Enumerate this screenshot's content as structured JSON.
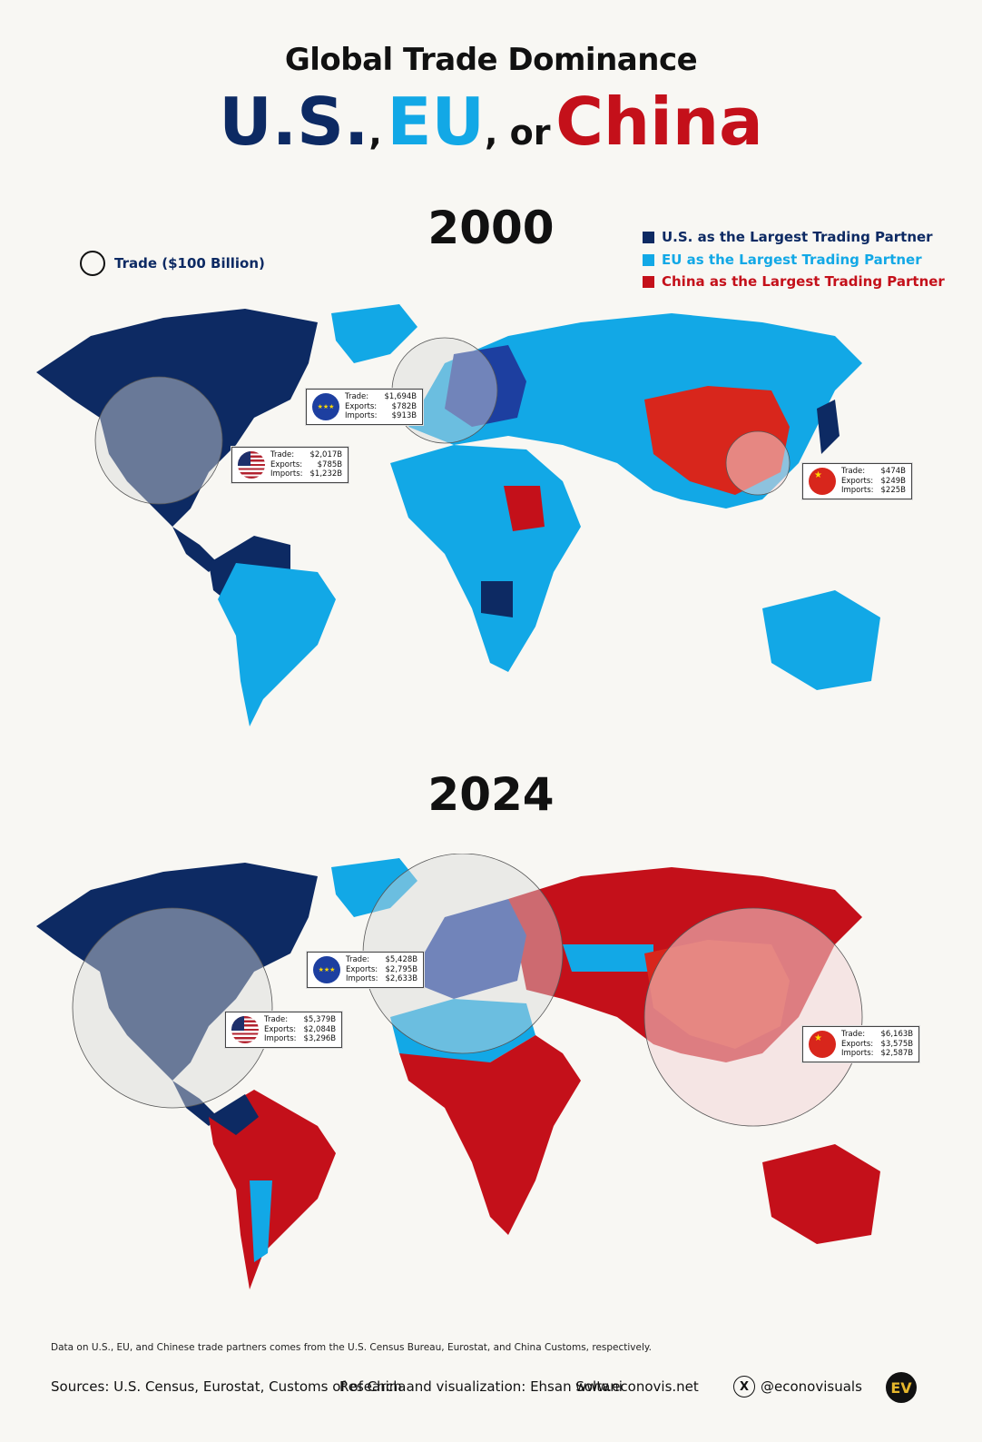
{
  "header": {
    "title_top": "Global Trade Dominance",
    "title_us": "U.S.",
    "title_sep1": ",",
    "title_eu": "EU",
    "title_sep2": ", or",
    "title_china": "China"
  },
  "legend": {
    "us": {
      "label": "U.S. as the Largest Trading Partner",
      "color": "#0d2a63"
    },
    "eu": {
      "label": "EU as the Largest Trading Partner",
      "color": "#12a8e6"
    },
    "china": {
      "label": "China as the Largest Trading Partner",
      "color": "#c4101a"
    },
    "size_label": "Trade ($100 Billion)"
  },
  "maps": [
    {
      "year": "2000",
      "eu_box": {
        "trade_label": "Trade:",
        "trade": "$1,694B",
        "exports_label": "Exports:",
        "exports": "$782B",
        "imports_label": "Imports:",
        "imports": "$913B"
      },
      "us_box": {
        "trade_label": "Trade:",
        "trade": "$2,017B",
        "exports_label": "Exports:",
        "exports": "$785B",
        "imports_label": "Imports:",
        "imports": "$1,232B"
      },
      "cn_box": {
        "trade_label": "Trade:",
        "trade": "$474B",
        "exports_label": "Exports:",
        "exports": "$249B",
        "imports_label": "Imports:",
        "imports": "$225B"
      }
    },
    {
      "year": "2024",
      "eu_box": {
        "trade_label": "Trade:",
        "trade": "$5,428B",
        "exports_label": "Exports:",
        "exports": "$2,795B",
        "imports_label": "Imports:",
        "imports": "$2,633B"
      },
      "us_box": {
        "trade_label": "Trade:",
        "trade": "$5,379B",
        "exports_label": "Exports:",
        "exports": "$2,084B",
        "imports_label": "Imports:",
        "imports": "$3,296B"
      },
      "cn_box": {
        "trade_label": "Trade:",
        "trade": "$6,163B",
        "exports_label": "Exports:",
        "exports": "$3,575B",
        "imports_label": "Imports:",
        "imports": "$2,587B"
      }
    }
  ],
  "footer": {
    "note": "Data on U.S., EU, and Chinese trade partners comes from the U.S. Census Bureau, Eurostat, and China Customs, respectively.",
    "sources": "Sources: U.S. Census, Eurostat, Customs of of China",
    "credit": "Research and visualization: Ehsan Soltani",
    "website": "www.econovis.net",
    "handle": "@econovisuals",
    "logo_text": "EV"
  },
  "icons": [
    "x-logo-icon",
    "econovis-logo-icon",
    "eu-flag-icon",
    "us-flag-icon",
    "china-flag-icon"
  ]
}
